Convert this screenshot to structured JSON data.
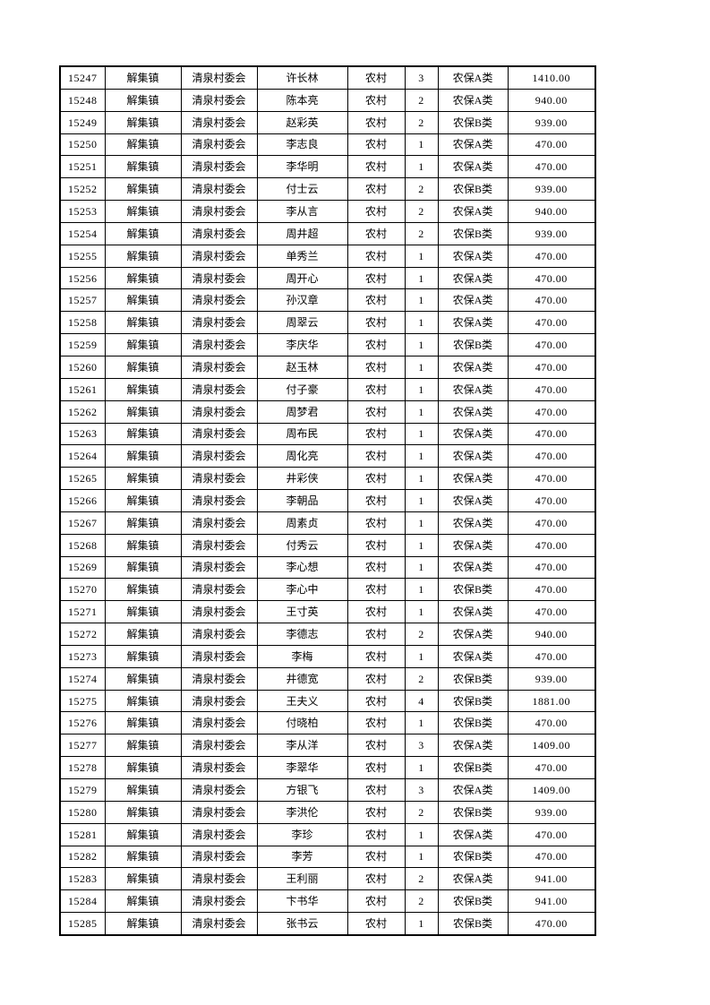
{
  "page": {
    "background_color": "#ffffff",
    "text_color": "#000000",
    "border_color": "#000000"
  },
  "table": {
    "town_label": "解集镇",
    "village_label": "清泉村委会",
    "residence_type_label": "农村",
    "category_a_label": "农保A类",
    "category_b_label": "农保B类",
    "rows": [
      [
        "15247",
        "解集镇",
        "清泉村委会",
        "许长林",
        "农村",
        "3",
        "农保A类",
        "1410.00"
      ],
      [
        "15248",
        "解集镇",
        "清泉村委会",
        "陈本亮",
        "农村",
        "2",
        "农保A类",
        "940.00"
      ],
      [
        "15249",
        "解集镇",
        "清泉村委会",
        "赵彩英",
        "农村",
        "2",
        "农保B类",
        "939.00"
      ],
      [
        "15250",
        "解集镇",
        "清泉村委会",
        "李志良",
        "农村",
        "1",
        "农保A类",
        "470.00"
      ],
      [
        "15251",
        "解集镇",
        "清泉村委会",
        "李华明",
        "农村",
        "1",
        "农保A类",
        "470.00"
      ],
      [
        "15252",
        "解集镇",
        "清泉村委会",
        "付士云",
        "农村",
        "2",
        "农保B类",
        "939.00"
      ],
      [
        "15253",
        "解集镇",
        "清泉村委会",
        "李从言",
        "农村",
        "2",
        "农保A类",
        "940.00"
      ],
      [
        "15254",
        "解集镇",
        "清泉村委会",
        "周井超",
        "农村",
        "2",
        "农保B类",
        "939.00"
      ],
      [
        "15255",
        "解集镇",
        "清泉村委会",
        "单秀兰",
        "农村",
        "1",
        "农保A类",
        "470.00"
      ],
      [
        "15256",
        "解集镇",
        "清泉村委会",
        "周开心",
        "农村",
        "1",
        "农保A类",
        "470.00"
      ],
      [
        "15257",
        "解集镇",
        "清泉村委会",
        "孙汉章",
        "农村",
        "1",
        "农保A类",
        "470.00"
      ],
      [
        "15258",
        "解集镇",
        "清泉村委会",
        "周翠云",
        "农村",
        "1",
        "农保A类",
        "470.00"
      ],
      [
        "15259",
        "解集镇",
        "清泉村委会",
        "李庆华",
        "农村",
        "1",
        "农保B类",
        "470.00"
      ],
      [
        "15260",
        "解集镇",
        "清泉村委会",
        "赵玉林",
        "农村",
        "1",
        "农保A类",
        "470.00"
      ],
      [
        "15261",
        "解集镇",
        "清泉村委会",
        "付子豪",
        "农村",
        "1",
        "农保A类",
        "470.00"
      ],
      [
        "15262",
        "解集镇",
        "清泉村委会",
        "周梦君",
        "农村",
        "1",
        "农保A类",
        "470.00"
      ],
      [
        "15263",
        "解集镇",
        "清泉村委会",
        "周布民",
        "农村",
        "1",
        "农保A类",
        "470.00"
      ],
      [
        "15264",
        "解集镇",
        "清泉村委会",
        "周化亮",
        "农村",
        "1",
        "农保A类",
        "470.00"
      ],
      [
        "15265",
        "解集镇",
        "清泉村委会",
        "井彩侠",
        "农村",
        "1",
        "农保A类",
        "470.00"
      ],
      [
        "15266",
        "解集镇",
        "清泉村委会",
        "李朝品",
        "农村",
        "1",
        "农保A类",
        "470.00"
      ],
      [
        "15267",
        "解集镇",
        "清泉村委会",
        "周素贞",
        "农村",
        "1",
        "农保A类",
        "470.00"
      ],
      [
        "15268",
        "解集镇",
        "清泉村委会",
        "付秀云",
        "农村",
        "1",
        "农保A类",
        "470.00"
      ],
      [
        "15269",
        "解集镇",
        "清泉村委会",
        "李心想",
        "农村",
        "1",
        "农保A类",
        "470.00"
      ],
      [
        "15270",
        "解集镇",
        "清泉村委会",
        "李心中",
        "农村",
        "1",
        "农保B类",
        "470.00"
      ],
      [
        "15271",
        "解集镇",
        "清泉村委会",
        "王寸英",
        "农村",
        "1",
        "农保A类",
        "470.00"
      ],
      [
        "15272",
        "解集镇",
        "清泉村委会",
        "李德志",
        "农村",
        "2",
        "农保A类",
        "940.00"
      ],
      [
        "15273",
        "解集镇",
        "清泉村委会",
        "李梅",
        "农村",
        "1",
        "农保A类",
        "470.00"
      ],
      [
        "15274",
        "解集镇",
        "清泉村委会",
        "井德宽",
        "农村",
        "2",
        "农保B类",
        "939.00"
      ],
      [
        "15275",
        "解集镇",
        "清泉村委会",
        "王夫义",
        "农村",
        "4",
        "农保B类",
        "1881.00"
      ],
      [
        "15276",
        "解集镇",
        "清泉村委会",
        "付晓柏",
        "农村",
        "1",
        "农保B类",
        "470.00"
      ],
      [
        "15277",
        "解集镇",
        "清泉村委会",
        "李从洋",
        "农村",
        "3",
        "农保A类",
        "1409.00"
      ],
      [
        "15278",
        "解集镇",
        "清泉村委会",
        "李翠华",
        "农村",
        "1",
        "农保B类",
        "470.00"
      ],
      [
        "15279",
        "解集镇",
        "清泉村委会",
        "方银飞",
        "农村",
        "3",
        "农保A类",
        "1409.00"
      ],
      [
        "15280",
        "解集镇",
        "清泉村委会",
        "李洪伦",
        "农村",
        "2",
        "农保B类",
        "939.00"
      ],
      [
        "15281",
        "解集镇",
        "清泉村委会",
        "李珍",
        "农村",
        "1",
        "农保A类",
        "470.00"
      ],
      [
        "15282",
        "解集镇",
        "清泉村委会",
        "李芳",
        "农村",
        "1",
        "农保B类",
        "470.00"
      ],
      [
        "15283",
        "解集镇",
        "清泉村委会",
        "王利丽",
        "农村",
        "2",
        "农保A类",
        "941.00"
      ],
      [
        "15284",
        "解集镇",
        "清泉村委会",
        "卞书华",
        "农村",
        "2",
        "农保B类",
        "941.00"
      ],
      [
        "15285",
        "解集镇",
        "清泉村委会",
        "张书云",
        "农村",
        "1",
        "农保B类",
        "470.00"
      ]
    ]
  }
}
